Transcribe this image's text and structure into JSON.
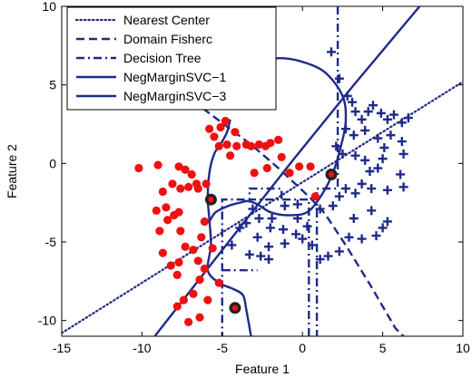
{
  "chart_data": {
    "type": "scatter",
    "title": "",
    "xlabel": "Feature 1",
    "ylabel": "Feature 2",
    "xlim": [
      -15,
      10
    ],
    "ylim": [
      -11,
      10
    ],
    "xticks": [
      -15,
      -10,
      -5,
      0,
      5,
      10
    ],
    "yticks": [
      -10,
      -5,
      0,
      5,
      10
    ],
    "grid": false,
    "legend_position": "top-left",
    "colors": {
      "class_a": "#ee1111",
      "boundary": "#1f2a8a",
      "support": "#222222"
    },
    "series": [
      {
        "kind": "points",
        "marker": "dot",
        "points": [
          [
            -10.2,
            -0.3
          ],
          [
            -9.0,
            -0.1
          ],
          [
            -8.7,
            -1.8
          ],
          [
            -8.1,
            -1.3
          ],
          [
            -7.7,
            -0.2
          ],
          [
            -7.3,
            -0.4
          ],
          [
            -7.6,
            -1.6
          ],
          [
            -7.1,
            -1.5
          ],
          [
            -6.5,
            -1.6
          ],
          [
            -6.9,
            -0.7
          ],
          [
            -6.6,
            -1.3
          ],
          [
            -6.0,
            -1.3
          ],
          [
            -5.8,
            2.2
          ],
          [
            -5.5,
            1.7
          ],
          [
            -5.2,
            1.1
          ],
          [
            -5.1,
            2.3
          ],
          [
            -4.8,
            2.7
          ],
          [
            -4.7,
            1.2
          ],
          [
            -4.5,
            0.5
          ],
          [
            -4.2,
            2.0
          ],
          [
            -4.1,
            1.1
          ],
          [
            -3.5,
            1.2
          ],
          [
            -3.2,
            1.1
          ],
          [
            -3.0,
            -0.6
          ],
          [
            -2.7,
            1.2
          ],
          [
            -2.3,
            1.1
          ],
          [
            -2.0,
            1.3
          ],
          [
            -2.2,
            -0.3
          ],
          [
            -1.5,
            1.5
          ],
          [
            -1.3,
            0.4
          ],
          [
            -0.8,
            -0.6
          ],
          [
            -0.2,
            -0.2
          ],
          [
            0.5,
            -0.2
          ],
          [
            0.8,
            -2.1
          ],
          [
            -8.5,
            -2.8
          ],
          [
            -8.0,
            -3.3
          ],
          [
            -8.4,
            -3.6
          ],
          [
            -7.7,
            -3.1
          ],
          [
            -7.6,
            -4.3
          ],
          [
            -7.3,
            -5.3
          ],
          [
            -7.7,
            -6.3
          ],
          [
            -7.8,
            -7.1
          ],
          [
            -8.2,
            -6.5
          ],
          [
            -8.7,
            -5.7
          ],
          [
            -8.9,
            -4.3
          ],
          [
            -9.1,
            -3.0
          ],
          [
            -6.8,
            -5.5
          ],
          [
            -6.3,
            -4.7
          ],
          [
            -6.5,
            -6.2
          ],
          [
            -6.1,
            -6.7
          ],
          [
            -6.4,
            -7.4
          ],
          [
            -6.8,
            -8.3
          ],
          [
            -7.4,
            -8.7
          ],
          [
            -7.8,
            -9.1
          ],
          [
            -7.1,
            -10.1
          ],
          [
            -6.4,
            -9.8
          ],
          [
            -5.9,
            -8.7
          ],
          [
            -5.2,
            -7.6
          ],
          [
            -6.1,
            -3.7
          ],
          [
            -5.6,
            -5.4
          ]
        ]
      },
      {
        "kind": "points",
        "marker": "plus",
        "points": [
          [
            1.8,
            7.1
          ],
          [
            2.3,
            5.4
          ],
          [
            2.8,
            4.3
          ],
          [
            3.1,
            3.9
          ],
          [
            3.3,
            3.3
          ],
          [
            3.7,
            2.8
          ],
          [
            4.1,
            3.3
          ],
          [
            4.4,
            3.7
          ],
          [
            4.9,
            3.2
          ],
          [
            5.3,
            2.8
          ],
          [
            5.7,
            3.1
          ],
          [
            6.2,
            2.6
          ],
          [
            6.6,
            2.9
          ],
          [
            2.7,
            2.2
          ],
          [
            3.2,
            1.8
          ],
          [
            3.9,
            2.1
          ],
          [
            4.7,
            1.6
          ],
          [
            5.1,
            1.0
          ],
          [
            5.5,
            1.8
          ],
          [
            6.2,
            1.4
          ],
          [
            6.3,
            0.6
          ],
          [
            2.1,
            1.1
          ],
          [
            2.5,
            0.6
          ],
          [
            3.3,
            0.5
          ],
          [
            3.9,
            0.2
          ],
          [
            4.2,
            -0.5
          ],
          [
            4.7,
            -0.3
          ],
          [
            5.0,
            0.3
          ],
          [
            6.1,
            -0.7
          ],
          [
            6.3,
            -1.5
          ],
          [
            5.3,
            -1.7
          ],
          [
            4.3,
            -1.6
          ],
          [
            3.7,
            -1.3
          ],
          [
            3.3,
            -1.9
          ],
          [
            2.7,
            -1.6
          ],
          [
            2.3,
            -2.1
          ],
          [
            1.9,
            -2.7
          ],
          [
            1.1,
            -2.9
          ],
          [
            -0.3,
            -2.6
          ],
          [
            -1.1,
            -2.7
          ],
          [
            -1.9,
            -3.5
          ],
          [
            -2.7,
            -3.5
          ],
          [
            -3.1,
            -2.9
          ],
          [
            -3.5,
            -3.8
          ],
          [
            -3.9,
            -4.1
          ],
          [
            -4.4,
            -5.2
          ],
          [
            -2.8,
            -4.7
          ],
          [
            -2.0,
            -4.1
          ],
          [
            -1.2,
            -4.2
          ],
          [
            -0.3,
            -3.5
          ],
          [
            0.3,
            -4.0
          ],
          [
            -0.4,
            -4.5
          ],
          [
            -1.1,
            -5.1
          ],
          [
            -2.1,
            -5.3
          ],
          [
            -2.6,
            -5.9
          ],
          [
            -3.3,
            -5.8
          ],
          [
            -2.1,
            -6.1
          ],
          [
            0.0,
            -4.8
          ],
          [
            0.6,
            -5.2
          ],
          [
            1.1,
            -6.1
          ],
          [
            1.6,
            -5.9
          ],
          [
            2.3,
            -5.6
          ],
          [
            2.9,
            -4.7
          ],
          [
            3.7,
            -4.8
          ],
          [
            4.6,
            -4.6
          ],
          [
            5.0,
            -4.1
          ],
          [
            5.3,
            -3.7
          ],
          [
            4.3,
            -3.0
          ],
          [
            3.2,
            -3.5
          ]
        ]
      },
      {
        "kind": "points",
        "marker": "support",
        "points": [
          [
            -5.7,
            -2.3
          ],
          [
            1.8,
            -0.7
          ],
          [
            -4.2,
            -9.2
          ]
        ]
      },
      {
        "kind": "line",
        "name": "Nearest Center",
        "style": "dotted",
        "points": [
          [
            -15,
            -10.8
          ],
          [
            10,
            5.2
          ]
        ]
      },
      {
        "kind": "line",
        "name": "Domain Fisherc",
        "style": "dashed",
        "points": [
          [
            -6.2,
            3.5
          ],
          [
            -3.2,
            1.2
          ],
          [
            -1.5,
            -0.3
          ],
          [
            0.5,
            -2.2
          ],
          [
            1.4,
            -3.2
          ],
          [
            2.7,
            -5.2
          ],
          [
            4.2,
            -7.7
          ],
          [
            5.8,
            -10.5
          ],
          [
            6.3,
            -11.0
          ]
        ]
      },
      {
        "kind": "polyline",
        "name": "Decision Tree",
        "style": "dashdot",
        "paths": [
          [
            [
              2.2,
              10
            ],
            [
              2.2,
              -1.6
            ],
            [
              0.9,
              -1.6
            ],
            [
              0.9,
              -11
            ]
          ],
          [
            [
              0.4,
              -11
            ],
            [
              0.4,
              -2.3
            ],
            [
              -3.3,
              -2.3
            ],
            [
              -3.3,
              -1.6
            ],
            [
              -1.3,
              -1.6
            ],
            [
              -1.3,
              -2.3
            ]
          ],
          [
            [
              -3.6,
              -2.3
            ],
            [
              -5.0,
              -2.3
            ],
            [
              -5.0,
              -6.8
            ],
            [
              -5.0,
              -11
            ]
          ],
          [
            [
              -5.0,
              -6.8
            ],
            [
              -2.8,
              -6.8
            ]
          ]
        ]
      },
      {
        "kind": "line",
        "name": "NegMarginSVC−1",
        "style": "solid",
        "points": [
          [
            -9.2,
            -11
          ],
          [
            -4.3,
            -4.6
          ],
          [
            -0.6,
            0.2
          ],
          [
            3.2,
            5.0
          ],
          [
            7.3,
            10
          ]
        ]
      },
      {
        "kind": "curve",
        "name": "NegMarginSVC−3",
        "style": "solid",
        "paths": [
          [
            [
              -4.5,
              2.8
            ],
            [
              -4.7,
              2.0
            ],
            [
              -5.0,
              1.4
            ],
            [
              -5.5,
              0.6
            ],
            [
              -5.8,
              -0.6
            ],
            [
              -5.9,
              -2.2
            ],
            [
              -5.8,
              -3.6
            ],
            [
              -5.7,
              -5.2
            ],
            [
              -5.9,
              -6.8
            ],
            [
              -5.2,
              -7.6
            ],
            [
              -4.3,
              -8.0
            ],
            [
              -3.7,
              -8.4
            ],
            [
              -3.5,
              -9.3
            ],
            [
              -3.2,
              -11
            ]
          ],
          [
            [
              -4.9,
              3.6
            ],
            [
              -4.5,
              4.6
            ],
            [
              -3.8,
              5.6
            ],
            [
              -2.6,
              6.4
            ],
            [
              -1.5,
              6.7
            ],
            [
              -0.1,
              6.5
            ],
            [
              1.4,
              5.8
            ],
            [
              2.5,
              4.3
            ],
            [
              2.7,
              2.7
            ],
            [
              2.4,
              1.1
            ],
            [
              1.9,
              -0.6
            ],
            [
              1.2,
              -2.0
            ],
            [
              0.3,
              -3.1
            ],
            [
              -0.9,
              -3.3
            ],
            [
              -2.0,
              -3.1
            ],
            [
              -2.8,
              -2.6
            ],
            [
              -3.4,
              -2.4
            ],
            [
              -3.9,
              -2.5
            ],
            [
              -4.6,
              -2.7
            ],
            [
              -5.4,
              -3.1
            ],
            [
              -5.8,
              -3.7
            ]
          ]
        ]
      }
    ]
  }
}
